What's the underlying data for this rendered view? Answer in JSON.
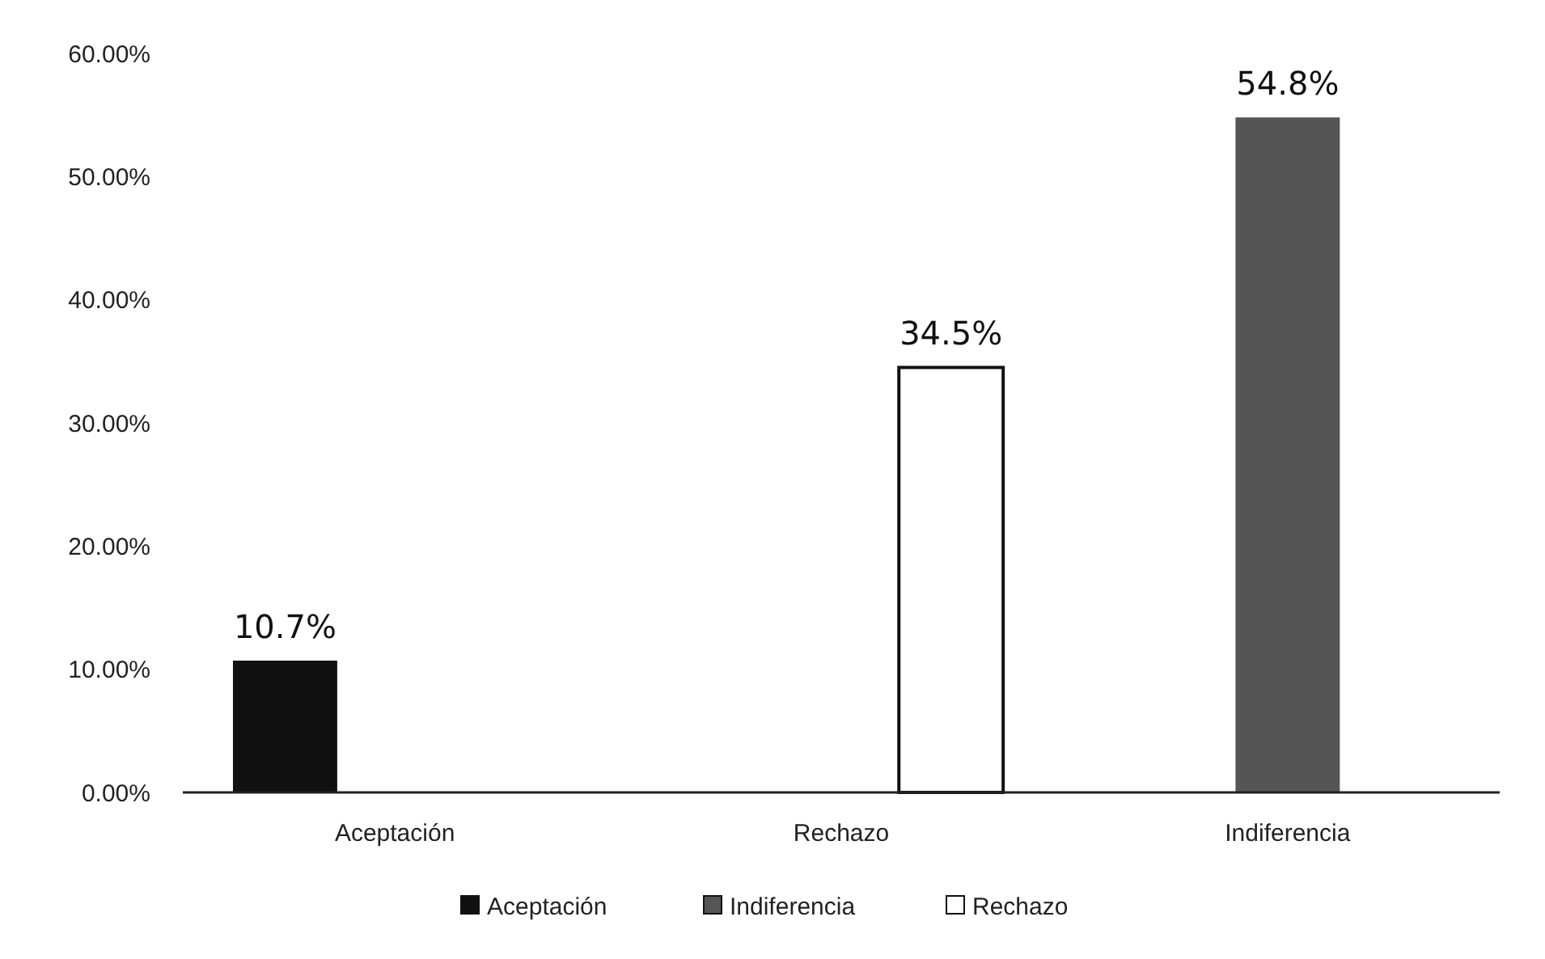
{
  "chart_data": {
    "type": "bar",
    "categories": [
      "Aceptación",
      "Rechazo",
      "Indiferencia"
    ],
    "series": [
      {
        "name": "Aceptación",
        "color": "#111111",
        "values": [
          10.7,
          null,
          null
        ],
        "value_labels": [
          "10.7%",
          null,
          null
        ]
      },
      {
        "name": "Indiferencia",
        "color": "#555555",
        "values": [
          null,
          null,
          54.8
        ],
        "value_labels": [
          null,
          null,
          "54.8%"
        ]
      },
      {
        "name": "Rechazo",
        "color": "#ffffff",
        "values": [
          null,
          34.5,
          null
        ],
        "value_labels": [
          null,
          "34.5%",
          null
        ]
      }
    ],
    "ylim": [
      0,
      60
    ],
    "yticks": [
      {
        "value": 0,
        "label": "0.00%"
      },
      {
        "value": 10,
        "label": "10.00%"
      },
      {
        "value": 20,
        "label": "20.00%"
      },
      {
        "value": 30,
        "label": "30.00%"
      },
      {
        "value": 40,
        "label": "40.00%"
      },
      {
        "value": 50,
        "label": "50.00%"
      },
      {
        "value": 60,
        "label": "60.00%"
      }
    ],
    "grid": false,
    "legend": "bottom"
  }
}
